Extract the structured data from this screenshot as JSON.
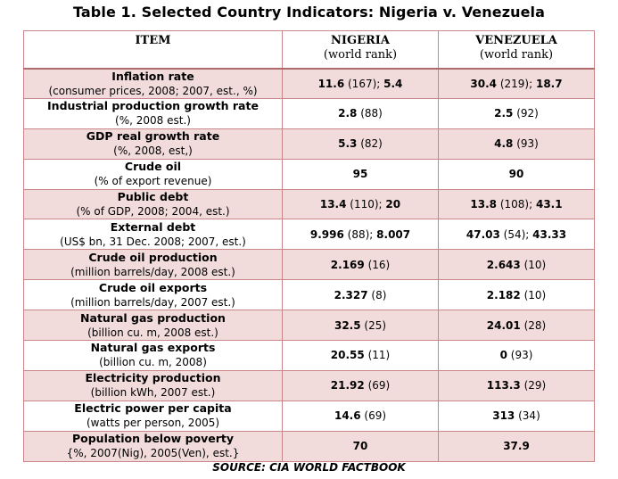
{
  "title": "Table 1. Selected Country Indicators: Nigeria v. Venezuela",
  "headers": {
    "item": "ITEM",
    "nigeria": "NIGERIA",
    "nigeria_sub": "(world rank)",
    "venezuela": "VENEZUELA",
    "venezuela_sub": "(world rank)"
  },
  "rows": [
    {
      "name": "Inflation rate",
      "sub": "(consumer prices, 2008; 2007, est., %)",
      "ng": {
        "v1": "11.6",
        "r1": " (167); ",
        "v2": "5.4"
      },
      "ve": {
        "v1": "30.4",
        "r1": " (219); ",
        "v2": "18.7"
      }
    },
    {
      "name": "Industrial production growth rate",
      "sub": "(%, 2008 est.)",
      "ng": {
        "v1": "2.8",
        "r1": " (88)",
        "v2": ""
      },
      "ve": {
        "v1": "2.5",
        "r1": " (92)",
        "v2": ""
      }
    },
    {
      "name": "GDP real growth rate",
      "sub": "(%, 2008, est,)",
      "ng": {
        "v1": "5.3",
        "r1": " (82)",
        "v2": ""
      },
      "ve": {
        "v1": "4.8",
        "r1": " (93)",
        "v2": ""
      }
    },
    {
      "name": "Crude oil",
      "sub": "(% of export revenue)",
      "ng": {
        "v1": "95",
        "r1": "",
        "v2": ""
      },
      "ve": {
        "v1": "90",
        "r1": "",
        "v2": ""
      }
    },
    {
      "name": "Public debt",
      "sub": "(% of GDP, 2008; 2004, est.)",
      "ng": {
        "v1": "13.4",
        "r1": " (110); ",
        "v2": "20"
      },
      "ve": {
        "v1": "13.8",
        "r1": " (108); ",
        "v2": "43.1"
      }
    },
    {
      "name": "External debt",
      "sub": "(US$ bn, 31 Dec. 2008; 2007, est.)",
      "ng": {
        "v1": "9.996",
        "r1": " (88); ",
        "v2": "8.007"
      },
      "ve": {
        "v1": "47.03",
        "r1": " (54); ",
        "v2": "43.33"
      }
    },
    {
      "name": "Crude oil production",
      "sub": "(million barrels/day, 2008 est.)",
      "ng": {
        "v1": "2.169",
        "r1": " (16)",
        "v2": ""
      },
      "ve": {
        "v1": "2.643",
        "r1": " (10)",
        "v2": ""
      }
    },
    {
      "name": "Crude oil exports",
      "sub": "(million barrels/day, 2007 est.)",
      "ng": {
        "v1": "2.327",
        "r1": " (8)",
        "v2": ""
      },
      "ve": {
        "v1": "2.182",
        "r1": " (10)",
        "v2": ""
      }
    },
    {
      "name": "Natural gas production",
      "sub": "(billion cu. m, 2008 est.)",
      "ng": {
        "v1": "32.5",
        "r1": " (25)",
        "v2": ""
      },
      "ve": {
        "v1": "24.01",
        "r1": " (28)",
        "v2": ""
      }
    },
    {
      "name": "Natural gas exports",
      "sub": "(billion cu. m, 2008)",
      "ng": {
        "v1": "20.55",
        "r1": " (11)",
        "v2": ""
      },
      "ve": {
        "v1": "0",
        "r1": " (93)",
        "v2": ""
      }
    },
    {
      "name": "Electricity production",
      "sub": "(billion kWh, 2007 est.)",
      "ng": {
        "v1": "21.92",
        "r1": " (69)",
        "v2": ""
      },
      "ve": {
        "v1": "113.3",
        "r1": " (29)",
        "v2": ""
      }
    },
    {
      "name": "Electric power per capita",
      "sub": "(watts per person, 2005)",
      "ng": {
        "v1": "14.6",
        "r1": " (69)",
        "v2": ""
      },
      "ve": {
        "v1": "313",
        "r1": " (34)",
        "v2": ""
      }
    },
    {
      "name": "Population below poverty",
      "sub": "{%, 2007(Nig), 2005(Ven), est.}",
      "ng": {
        "v1": "70",
        "r1": "",
        "v2": ""
      },
      "ve": {
        "v1": "37.9",
        "r1": "",
        "v2": ""
      }
    }
  ],
  "source": "SOURCE: CIA WORLD FACTBOOK"
}
